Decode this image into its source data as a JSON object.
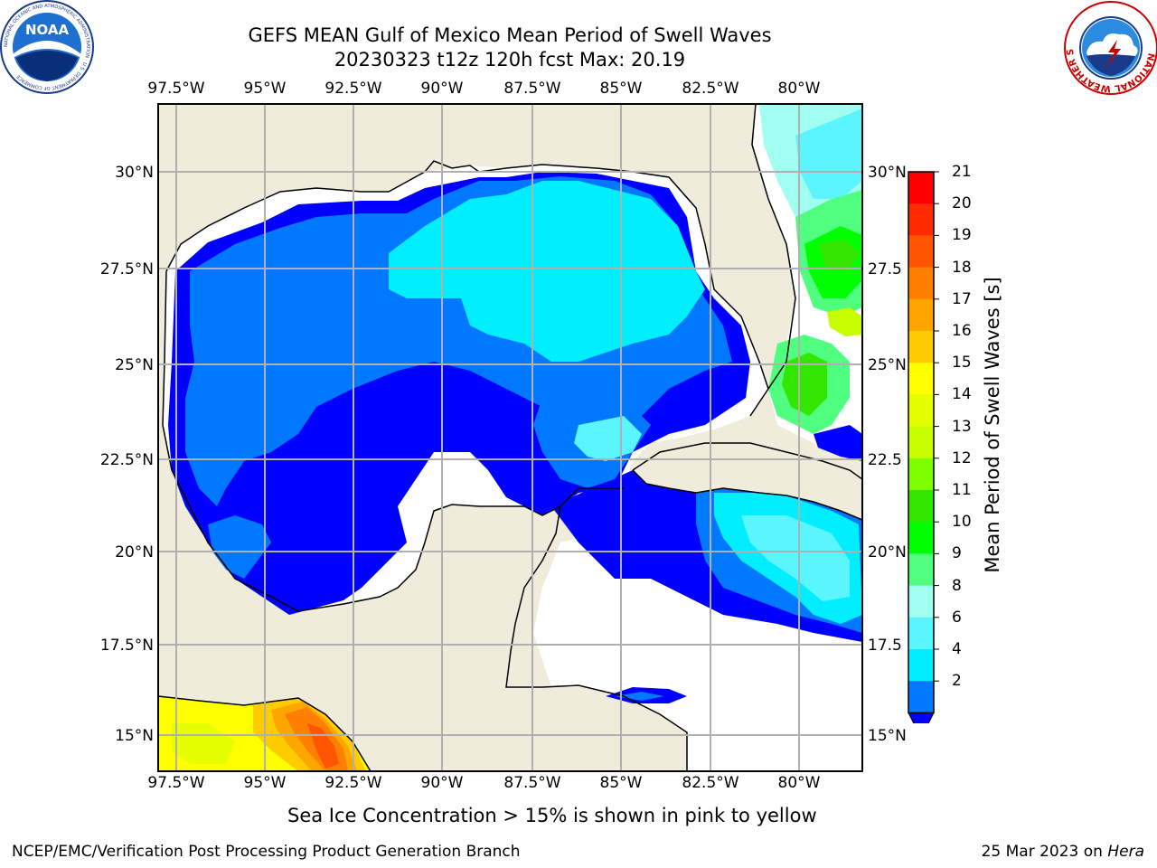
{
  "title_line1": "GEFS MEAN Gulf of Mexico Mean Period of Swell Waves",
  "title_line2": "20230323 t12z 120h fcst   Max: 20.19",
  "lon_labels": [
    "97.5°W",
    "95°W",
    "92.5°W",
    "90°W",
    "87.5°W",
    "85°W",
    "82.5°W",
    "80°W"
  ],
  "lat_labels": [
    "30°N",
    "27.5°N",
    "25°N",
    "22.5°N",
    "20°N",
    "17.5°N",
    "15°N"
  ],
  "lat_labels_right": [
    "30°N",
    "27.5",
    "25°N",
    "22.5",
    "20°N",
    "17.5",
    "15°N"
  ],
  "colorbar": {
    "title": "Mean Period of Swell Waves [s]",
    "ticks": [
      "21",
      "20",
      "19",
      "18",
      "17",
      "16",
      "15",
      "14",
      "13",
      "12",
      "11",
      "10",
      "9",
      "8",
      "6",
      "4",
      "2"
    ],
    "colors": [
      "#fe0000",
      "#ff2a00",
      "#ff5500",
      "#ff8000",
      "#ffa500",
      "#ffcc00",
      "#ffff00",
      "#e6ff00",
      "#c8ff00",
      "#7dff00",
      "#32e600",
      "#00ff00",
      "#50ff80",
      "#a0fff0",
      "#5af5ff",
      "#00eeff",
      "#0078ff"
    ],
    "extend_color": "#0000ff"
  },
  "footnote": "Sea Ice Concentration > 15% is shown in pink to yellow",
  "credit_left": "NCEP/EMC/Verification Post Processing Product Generation Branch",
  "credit_date": "25 Mar 2023 on ",
  "credit_machine": "Hera",
  "logo_left": "NOAA",
  "logo_left_ring": "NATIONAL OCEANIC AND ATMOSPHERIC ADMINISTRATION · U.S. DEPARTMENT OF COMMERCE",
  "logo_right_ring": "NATIONAL WEATHER SERVICE"
}
